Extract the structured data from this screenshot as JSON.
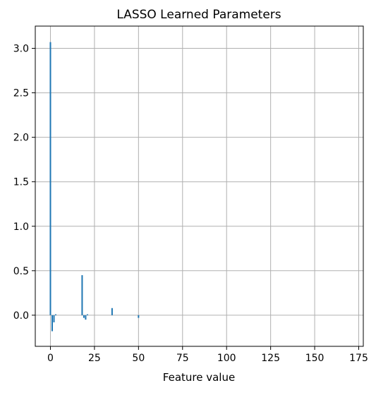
{
  "chart_data": {
    "type": "bar",
    "title": "LASSO Learned Parameters",
    "xlabel": "Feature value",
    "ylabel": "",
    "xlim": [
      -8.6,
      177.6
    ],
    "ylim": [
      -0.35,
      3.25
    ],
    "xticks": [
      0,
      25,
      50,
      75,
      100,
      125,
      150,
      175
    ],
    "xtick_labels": [
      "0",
      "25",
      "50",
      "75",
      "100",
      "125",
      "150",
      "175"
    ],
    "yticks": [
      0.0,
      0.5,
      1.0,
      1.5,
      2.0,
      2.5,
      3.0
    ],
    "ytick_labels": [
      "0.0",
      "0.5",
      "1.0",
      "1.5",
      "2.0",
      "2.5",
      "3.0"
    ],
    "grid": true,
    "bar_color": "#1f77b4",
    "x": [
      0,
      1,
      2,
      3,
      18,
      19,
      20,
      21,
      35,
      50
    ],
    "values": [
      3.07,
      -0.18,
      -0.08,
      0.01,
      0.45,
      -0.03,
      -0.05,
      0.01,
      0.08,
      -0.03
    ]
  }
}
